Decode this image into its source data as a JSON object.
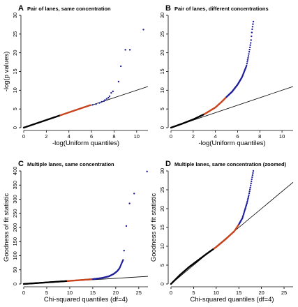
{
  "chart_data": [
    {
      "type": "scatter",
      "letter": "A",
      "title": "Pair of lanes, same concentration",
      "xlabel": "-log(Uniform quantiles)",
      "ylabel": "-log(p values)",
      "xlim": [
        0,
        11
      ],
      "ylim": [
        0,
        30
      ],
      "xticks": [
        0,
        2,
        4,
        6,
        8,
        10
      ],
      "yticks": [
        0,
        5,
        10,
        15,
        20,
        25,
        30
      ],
      "reference_line": {
        "slope": 1,
        "intercept": 0
      },
      "colors": {
        "black": "#000000",
        "red": "#c8431d",
        "blue": "#1f1f9a"
      },
      "bands": {
        "black": [
          0,
          3.2
        ],
        "red": [
          3.2,
          5.9
        ]
      },
      "blue_points": [
        [
          6.1,
          6.1
        ],
        [
          6.4,
          6.3
        ],
        [
          6.7,
          6.6
        ],
        [
          6.9,
          6.9
        ],
        [
          7.1,
          7.1
        ],
        [
          7.2,
          7.4
        ],
        [
          7.35,
          7.7
        ],
        [
          7.5,
          8.0
        ],
        [
          7.6,
          8.4
        ],
        [
          7.75,
          9.3
        ],
        [
          7.9,
          9.7
        ],
        [
          8.4,
          12.3
        ],
        [
          8.6,
          16.4
        ],
        [
          9.0,
          20.8
        ],
        [
          9.4,
          20.8
        ],
        [
          10.6,
          26.2
        ]
      ]
    },
    {
      "type": "scatter",
      "letter": "B",
      "title": "Pair of lanes, different concentrations",
      "xlabel": "-log(Uniform quantiles)",
      "ylabel": "",
      "xlim": [
        0,
        11
      ],
      "ylim": [
        0,
        30
      ],
      "xticks": [
        0,
        2,
        4,
        6,
        8,
        10
      ],
      "yticks": [
        0,
        5,
        10,
        15,
        20,
        25,
        30
      ],
      "reference_line": {
        "slope": 1,
        "intercept": 0
      },
      "colors": {
        "black": "#000000",
        "red": "#c8431d",
        "blue": "#1f1f9a"
      },
      "curve": [
        [
          0,
          0
        ],
        [
          1,
          1.05
        ],
        [
          2,
          2.2
        ],
        [
          3,
          3.6
        ],
        [
          4,
          5.4
        ],
        [
          4.6,
          7.0
        ],
        [
          5.0,
          8.2
        ],
        [
          5.5,
          9.6
        ],
        [
          6.0,
          11.5
        ],
        [
          6.4,
          13.5
        ],
        [
          6.8,
          16.5
        ],
        [
          7.0,
          19.5
        ],
        [
          7.2,
          23.0
        ],
        [
          7.3,
          26.0
        ],
        [
          7.45,
          29.0
        ]
      ],
      "bands": {
        "black": [
          0,
          3.0
        ],
        "red": [
          3.0,
          5.0
        ]
      }
    },
    {
      "type": "scatter",
      "letter": "C",
      "title": "Multiple lanes, same concentration",
      "xlabel": "Chi-squared quantiles (df=4)",
      "ylabel": "Goodness of fit statistic",
      "xlim": [
        0,
        27
      ],
      "ylim": [
        0,
        400
      ],
      "xticks": [
        0,
        5,
        10,
        15,
        20,
        25
      ],
      "yticks": [
        0,
        50,
        100,
        150,
        200,
        250,
        300,
        350,
        400
      ],
      "reference_line": {
        "slope": 1,
        "intercept": 0
      },
      "colors": {
        "black": "#000000",
        "red": "#c8431d",
        "blue": "#1f1f9a"
      },
      "curve": [
        [
          0,
          0
        ],
        [
          5,
          5.5
        ],
        [
          10,
          11
        ],
        [
          15,
          17
        ],
        [
          17,
          21
        ],
        [
          18.5,
          27
        ],
        [
          19.5,
          35
        ],
        [
          20.3,
          45
        ],
        [
          20.8,
          55
        ],
        [
          21.2,
          70
        ],
        [
          21.6,
          85
        ]
      ],
      "bands": {
        "black": [
          0,
          9.5
        ],
        "red": [
          9.5,
          15
        ]
      },
      "outliers": [
        [
          21.8,
          118
        ],
        [
          22.3,
          205
        ],
        [
          23.0,
          285
        ],
        [
          24.0,
          320
        ],
        [
          26.8,
          398
        ]
      ]
    },
    {
      "type": "scatter",
      "letter": "D",
      "title": "Multiple lanes, same concentration (zoomed)",
      "xlabel": "Chi-squared quantiles (df=4)",
      "ylabel": "Goodness of fit statistic",
      "xlim": [
        0,
        27
      ],
      "ylim": [
        0,
        30
      ],
      "xticks": [
        0,
        5,
        10,
        15,
        20,
        25
      ],
      "yticks": [
        0,
        5,
        10,
        15,
        20,
        25,
        30
      ],
      "reference_line": {
        "slope": 1,
        "intercept": 0
      },
      "colors": {
        "black": "#000000",
        "red": "#c8431d",
        "blue": "#1f1f9a"
      },
      "curve": [
        [
          0,
          0
        ],
        [
          2,
          2.4
        ],
        [
          4,
          4.5
        ],
        [
          6,
          6.3
        ],
        [
          8,
          8.1
        ],
        [
          10,
          9.8
        ],
        [
          12,
          11.8
        ],
        [
          14,
          14.0
        ],
        [
          15,
          15.8
        ],
        [
          15.8,
          17.5
        ],
        [
          16.3,
          19.5
        ],
        [
          16.8,
          21.5
        ],
        [
          17.2,
          23.5
        ],
        [
          17.6,
          26.0
        ],
        [
          17.9,
          28.0
        ],
        [
          18.2,
          30.0
        ]
      ],
      "bands": {
        "black": [
          0,
          9.5
        ],
        "red": [
          9.5,
          15
        ]
      }
    }
  ]
}
